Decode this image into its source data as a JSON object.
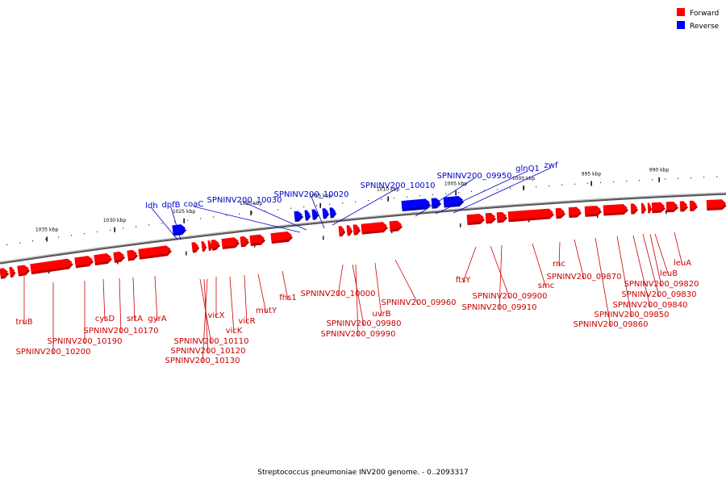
{
  "caption": "Streptococcus pneumoniae INV200 genome. - 0..2093317",
  "legend": [
    {
      "label": "Forward",
      "color": "#ff0000"
    },
    {
      "label": "Reverse",
      "color": "#0000ff"
    }
  ],
  "colors": {
    "forward": "#ff0000",
    "forward_dark": "#c00000",
    "reverse": "#0000ff",
    "reverse_dark": "#0000b0",
    "forward_label": "#cc0000",
    "reverse_label": "#0000cc",
    "backbone": "#888888"
  },
  "scale_ticks": [
    "1035 kbp",
    "1030 kbp",
    "1025 kbp",
    "1020 kbp",
    "1015 kbp",
    "1010 kbp",
    "1005 kbp",
    "1000 kbp",
    "995 kbp",
    "990 kbp"
  ],
  "forward_gene_labels": [
    "truB",
    "SPNINV200_10200",
    "SPNINV200_10190",
    "cysD",
    "SPNINV200_10170",
    "srtA",
    "gyrA",
    "SPNINV200_10110",
    "SPNINV200_10120",
    "SPNINV200_10130",
    "vicX",
    "vicK",
    "vicR",
    "mutY",
    "fhs1",
    "SPNINV200_10000",
    "SPNINV200_09980",
    "SPNINV200_09990",
    "uvrB",
    "SPNINV200_09960",
    "ftsY",
    "SPNINV200_09900",
    "SPNINV200_09910",
    "smc",
    "rnc",
    "SPNINV200_09870",
    "SPNINV200_09860",
    "SPNINV200_09850",
    "SPNINV200_09840",
    "SPNINV200_09830",
    "SPNINV200_09820",
    "leuB",
    "leuA"
  ],
  "reverse_gene_labels": [
    "ldh",
    "dpfB",
    "coaC",
    "SPNINV200_10030",
    "SPNINV200_10020",
    "SPNINV200_10010",
    "SPNINV200_09950",
    "glnQ1",
    "zwf"
  ]
}
